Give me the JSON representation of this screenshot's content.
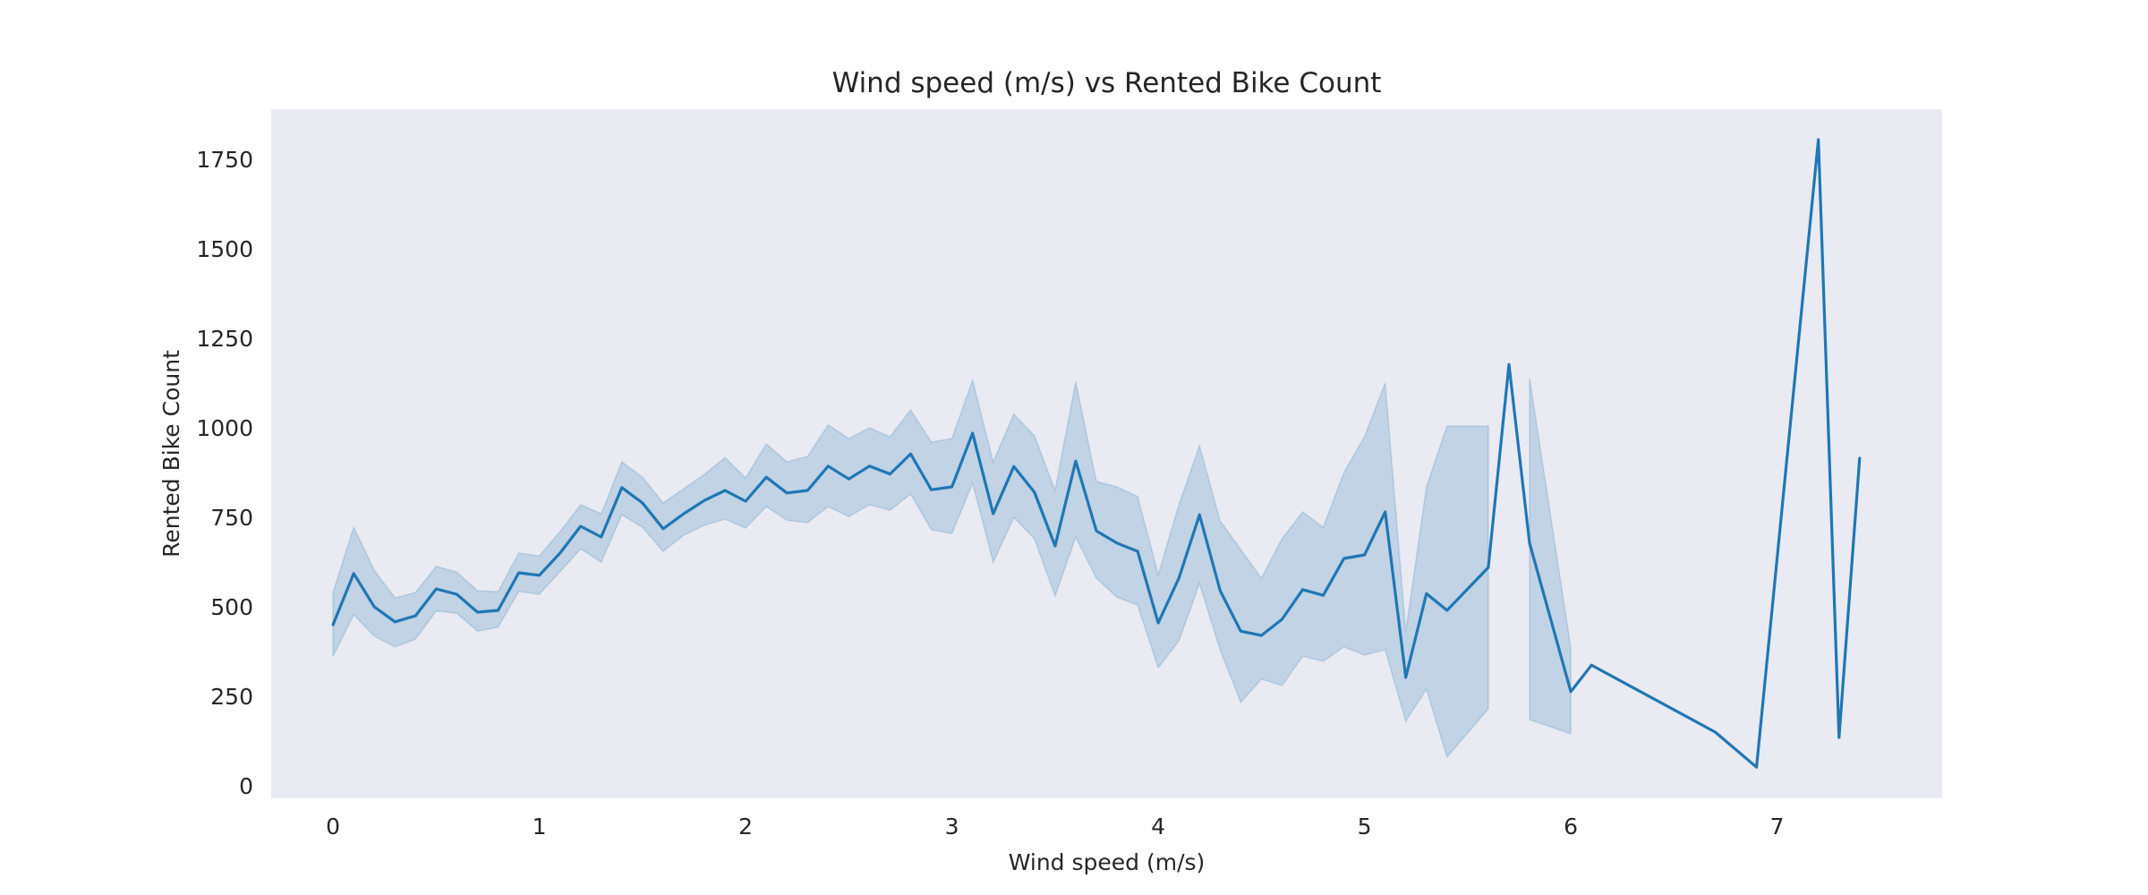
{
  "chart_data": {
    "type": "line",
    "title": "Wind speed (m/s) vs Rented Bike Count",
    "xlabel": "Wind speed (m/s)",
    "ylabel": "Rented Bike Count",
    "xlim": [
      -0.3,
      7.8
    ],
    "ylim": [
      -35,
      1890
    ],
    "x_ticks": [
      0,
      1,
      2,
      3,
      4,
      5,
      6,
      7
    ],
    "y_ticks": [
      0,
      250,
      500,
      750,
      1000,
      1250,
      1500,
      1750
    ],
    "grid": false,
    "legend": "none",
    "colors": {
      "line": "#1f77b4",
      "band": "#1f77b4",
      "plot_bg": "#eaeaf2"
    },
    "series": [
      {
        "x": [
          0.0,
          0.1,
          0.2,
          0.3,
          0.4,
          0.5,
          0.6,
          0.7,
          0.8,
          0.9,
          1.0,
          1.1,
          1.2,
          1.3,
          1.4,
          1.5,
          1.6,
          1.7,
          1.8,
          1.9,
          2.0,
          2.1,
          2.2,
          2.3,
          2.4,
          2.5,
          2.6,
          2.7,
          2.8,
          2.9,
          3.0,
          3.1,
          3.2,
          3.3,
          3.4,
          3.5,
          3.6,
          3.7,
          3.8,
          3.9,
          4.0,
          4.1,
          4.2,
          4.3,
          4.4,
          4.5,
          4.6,
          4.7,
          4.8,
          4.9,
          5.0,
          5.1,
          5.2,
          5.3,
          5.4,
          5.6,
          5.7,
          5.8,
          6.0,
          6.1,
          6.7,
          6.9,
          7.2,
          7.3,
          7.4
        ],
        "y": [
          450,
          593,
          500,
          458,
          475,
          550,
          535,
          485,
          490,
          595,
          588,
          650,
          725,
          695,
          833,
          790,
          718,
          760,
          797,
          825,
          795,
          862,
          818,
          825,
          893,
          857,
          893,
          871,
          927,
          827,
          835,
          985,
          760,
          892,
          820,
          670,
          907,
          712,
          678,
          655,
          455,
          580,
          757,
          545,
          432,
          420,
          465,
          548,
          532,
          635,
          645,
          765,
          303,
          537,
          490,
          610,
          1177,
          678,
          263,
          337,
          150,
          52,
          1805,
          135,
          915
        ],
        "lower": [
          362,
          478,
          418,
          388,
          410,
          488,
          482,
          432,
          443,
          543,
          535,
          598,
          662,
          625,
          757,
          722,
          655,
          700,
          728,
          745,
          720,
          780,
          742,
          735,
          780,
          752,
          785,
          770,
          815,
          715,
          705,
          845,
          625,
          750,
          690,
          530,
          695,
          580,
          527,
          505,
          330,
          405,
          565,
          380,
          233,
          298,
          280,
          362,
          348,
          388,
          365,
          380,
          180,
          270,
          80,
          215,
          null,
          185,
          145,
          null,
          null,
          null,
          null,
          null,
          null
        ],
        "upper": [
          540,
          722,
          602,
          525,
          540,
          613,
          597,
          545,
          542,
          650,
          642,
          710,
          785,
          760,
          905,
          862,
          790,
          830,
          870,
          917,
          860,
          955,
          905,
          920,
          1008,
          970,
          1000,
          975,
          1050,
          960,
          970,
          1133,
          905,
          1038,
          978,
          825,
          1128,
          850,
          835,
          808,
          590,
          785,
          950,
          740,
          660,
          580,
          690,
          765,
          722,
          875,
          975,
          1125,
          430,
          835,
          1005,
          1005,
          null,
          1138,
          385,
          null,
          null,
          null,
          null,
          null,
          null
        ]
      }
    ]
  }
}
